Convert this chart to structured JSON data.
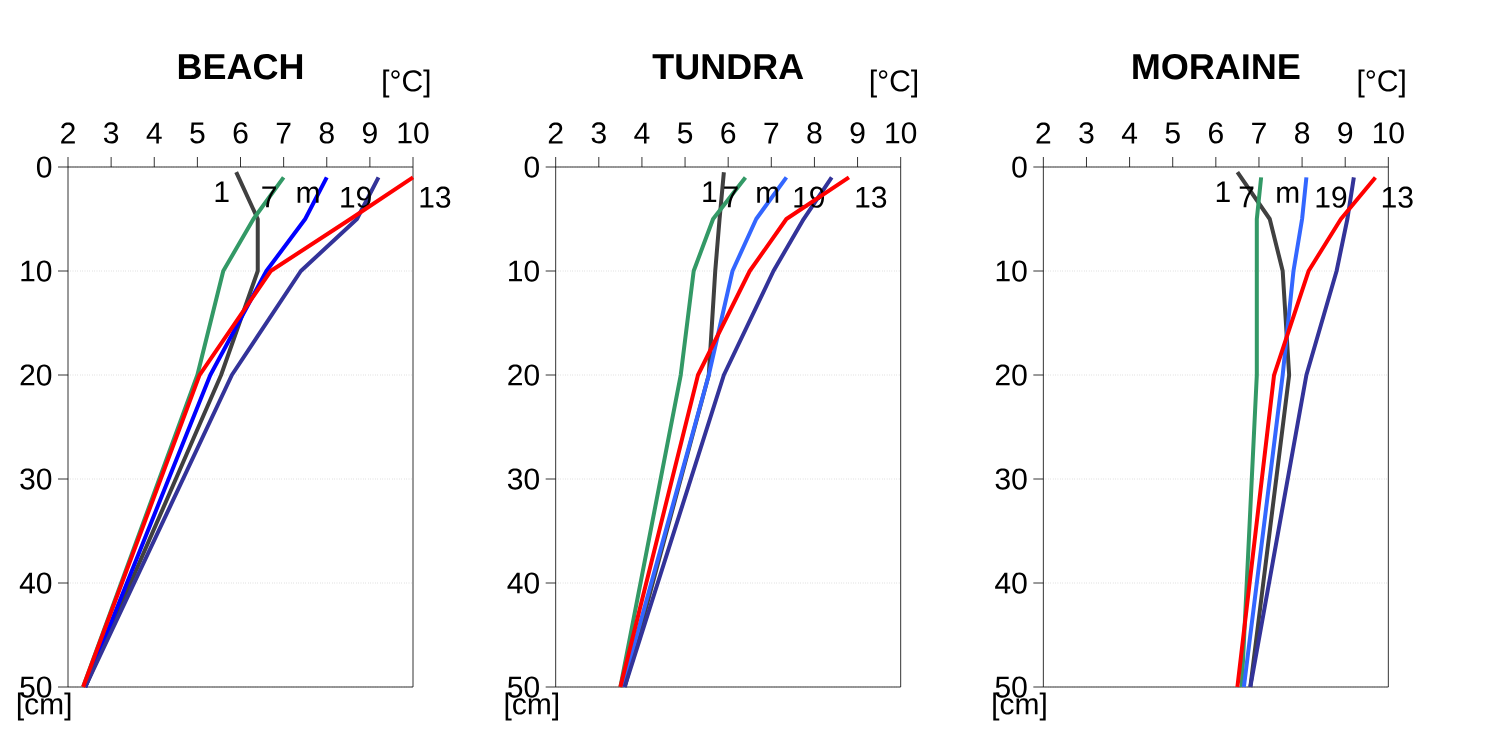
{
  "chart_data": [
    {
      "type": "line",
      "title": "BEACH",
      "xlabel": "[°C]",
      "ylabel": "[cm]",
      "xlim": [
        2,
        10
      ],
      "ylim": [
        50,
        0
      ],
      "xticks": [
        2,
        3,
        4,
        5,
        6,
        7,
        8,
        9,
        10
      ],
      "yticks": [
        0,
        10,
        20,
        30,
        40,
        50
      ],
      "grid": "y",
      "series": [
        {
          "name": "1",
          "color": "#404040",
          "x": [
            5.9,
            6.4,
            6.4,
            5.55,
            2.4
          ],
          "values": [
            0.5,
            5,
            10,
            20,
            50
          ]
        },
        {
          "name": "7",
          "color": "#339966",
          "x": [
            7.0,
            6.3,
            5.6,
            5.0,
            2.35
          ],
          "values": [
            1,
            5,
            10,
            20,
            50
          ]
        },
        {
          "name": "m",
          "color": "#0000ff",
          "x": [
            8.0,
            7.5,
            6.6,
            5.3,
            2.4
          ],
          "values": [
            1,
            5,
            10,
            20,
            50
          ]
        },
        {
          "name": "19",
          "color": "#333399",
          "x": [
            9.2,
            8.7,
            7.4,
            5.8,
            2.4
          ],
          "values": [
            1,
            5,
            10,
            20,
            50
          ]
        },
        {
          "name": "13",
          "color": "#ff0000",
          "x": [
            10.0,
            8.55,
            6.7,
            5.05,
            2.35
          ],
          "values": [
            1,
            5,
            10,
            20,
            50
          ]
        }
      ]
    },
    {
      "type": "line",
      "title": "TUNDRA",
      "xlabel": "[°C]",
      "ylabel": "[cm]",
      "xlim": [
        2,
        10
      ],
      "ylim": [
        50,
        0
      ],
      "xticks": [
        2,
        3,
        4,
        5,
        6,
        7,
        8,
        9,
        10
      ],
      "yticks": [
        0,
        10,
        20,
        30,
        40,
        50
      ],
      "grid": "y",
      "series": [
        {
          "name": "1",
          "color": "#404040",
          "x": [
            5.9,
            5.8,
            5.7,
            5.55,
            3.6
          ],
          "values": [
            0.5,
            5,
            10,
            20,
            50
          ]
        },
        {
          "name": "7",
          "color": "#339966",
          "x": [
            6.4,
            5.65,
            5.2,
            4.9,
            3.5
          ],
          "values": [
            1,
            5,
            10,
            20,
            50
          ]
        },
        {
          "name": "m",
          "color": "#3366ff",
          "x": [
            7.35,
            6.65,
            6.1,
            5.55,
            3.55
          ],
          "values": [
            1,
            5,
            10,
            20,
            50
          ]
        },
        {
          "name": "19",
          "color": "#333399",
          "x": [
            8.4,
            7.75,
            7.05,
            5.9,
            3.6
          ],
          "values": [
            1,
            5,
            10,
            20,
            50
          ]
        },
        {
          "name": "13",
          "color": "#ff0000",
          "x": [
            8.8,
            7.35,
            6.5,
            5.3,
            3.5
          ],
          "values": [
            1,
            5,
            10,
            20,
            50
          ]
        }
      ]
    },
    {
      "type": "line",
      "title": "MORAINE",
      "xlabel": "[°C]",
      "ylabel": "[cm]",
      "xlim": [
        2,
        10
      ],
      "ylim": [
        50,
        0
      ],
      "xticks": [
        2,
        3,
        4,
        5,
        6,
        7,
        8,
        9,
        10
      ],
      "yticks": [
        0,
        10,
        20,
        30,
        40,
        50
      ],
      "grid": "y",
      "series": [
        {
          "name": "1",
          "color": "#404040",
          "x": [
            6.5,
            7.25,
            7.55,
            7.7,
            6.8
          ],
          "values": [
            0.5,
            5,
            10,
            20,
            50
          ]
        },
        {
          "name": "7",
          "color": "#339966",
          "x": [
            7.05,
            6.95,
            6.95,
            6.95,
            6.6
          ],
          "values": [
            1,
            5,
            10,
            20,
            50
          ]
        },
        {
          "name": "m",
          "color": "#3366ff",
          "x": [
            8.1,
            8.0,
            7.8,
            7.55,
            6.65
          ],
          "values": [
            1,
            5,
            10,
            20,
            50
          ]
        },
        {
          "name": "19",
          "color": "#333399",
          "x": [
            9.2,
            9.05,
            8.8,
            8.1,
            6.8
          ],
          "values": [
            1,
            5,
            10,
            20,
            50
          ]
        },
        {
          "name": "13",
          "color": "#ff0000",
          "x": [
            9.7,
            8.9,
            8.15,
            7.35,
            6.5
          ],
          "values": [
            1,
            5,
            10,
            20,
            50
          ]
        }
      ]
    }
  ]
}
